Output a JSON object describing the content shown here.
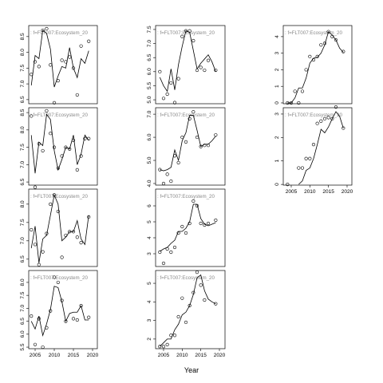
{
  "xlabel": "Year",
  "chart_data": [
    {
      "type": "line",
      "title": ": f=FLT007:Ecosystem_20",
      "x": [
        2004,
        2005,
        2006,
        2007,
        2008,
        2009,
        2010,
        2011,
        2012,
        2013,
        2014,
        2015,
        2016,
        2017,
        2018,
        2019
      ],
      "xlim": [
        2003.33,
        2021.25
      ],
      "ylim": [
        6.37,
        8.85
      ],
      "yticks": [
        6.5,
        {
          "value": 7,
          "label": "7.0"
        },
        7.5,
        {
          "value": 8,
          "label": "8.0"
        },
        8.5
      ],
      "series": [
        {
          "style": "points",
          "color": "#000000",
          "values": [
            7.3,
            7.7,
            7.55,
            8.7,
            8.75,
            7.6,
            6.4,
            7.1,
            7.75,
            7.7,
            7.85,
            7.5,
            6.65,
            8.2,
            null,
            8.35
          ]
        },
        {
          "style": "line",
          "color": "#000000",
          "values": [
            6.95,
            7.9,
            7.8,
            8.7,
            8.6,
            8.1,
            6.9,
            7.25,
            7.55,
            7.5,
            8.15,
            7.5,
            7.2,
            7.8,
            7.65,
            8.05
          ]
        }
      ]
    },
    {
      "type": "line",
      "title": ": f=FLT007:Ecosystem_20",
      "x": [
        2004,
        2005,
        2006,
        2007,
        2008,
        2009,
        2010,
        2011,
        2012,
        2013,
        2014,
        2015,
        2016,
        2017,
        2018,
        2019
      ],
      "xlim": [
        2003.33,
        2021.25
      ],
      "ylim": [
        6.41,
        8.64
      ],
      "yticks": [
        6.5,
        {
          "value": 7,
          "label": "7.0"
        },
        7.5,
        {
          "value": 8,
          "label": "8.0"
        },
        8.5
      ],
      "series": [
        {
          "style": "points",
          "color": "#000000",
          "values": [
            8.4,
            6.35,
            7.6,
            7.4,
            8.55,
            7.9,
            7.5,
            6.9,
            7.25,
            7.5,
            7.45,
            7.7,
            6.85,
            7.25,
            7.75,
            7.75
          ]
        },
        {
          "style": "line",
          "color": "#000000",
          "values": [
            7.85,
            6.75,
            7.65,
            7.55,
            8.45,
            8.3,
            7.4,
            6.85,
            7.15,
            7.5,
            7.45,
            7.85,
            7.0,
            7.3,
            7.85,
            7.7
          ]
        }
      ]
    },
    {
      "type": "line",
      "title": ": f=FLT007:Ecosystem_20",
      "x": [
        2004,
        2005,
        2006,
        2007,
        2008,
        2009,
        2010,
        2011,
        2012,
        2013,
        2014,
        2015,
        2016,
        2017,
        2018,
        2019
      ],
      "xlim": [
        2003.33,
        2021.25
      ],
      "ylim": [
        6.3,
        8.41
      ],
      "yticks": [
        6.5,
        {
          "value": 7,
          "label": "7.0"
        },
        7.5,
        {
          "value": 8,
          "label": "8.0"
        }
      ],
      "series": [
        {
          "style": "points",
          "color": "#000000",
          "values": [
            7.3,
            6.9,
            6.35,
            6.7,
            7.2,
            8.0,
            8.25,
            7.8,
            6.55,
            7.15,
            7.25,
            7.25,
            7.1,
            6.95,
            null,
            7.65
          ]
        },
        {
          "style": "line",
          "color": "#000000",
          "values": [
            6.8,
            7.4,
            6.4,
            7.05,
            7.15,
            7.7,
            8.25,
            8.0,
            7.0,
            7.1,
            7.25,
            7.25,
            7.55,
            7.05,
            6.9,
            7.7
          ]
        }
      ]
    },
    {
      "type": "line",
      "title": ": f=FLT007:Ecosystem_20",
      "x": [
        2004,
        2005,
        2006,
        2007,
        2008,
        2009,
        2010,
        2011,
        2012,
        2013,
        2014,
        2015,
        2016,
        2017,
        2018,
        2019
      ],
      "xlim": [
        2003.33,
        2021.25
      ],
      "ylim": [
        5.44,
        8.46
      ],
      "xticks": [
        2005,
        2010,
        2015,
        2020
      ],
      "yticks": [
        5.5,
        {
          "value": 6,
          "label": "6.0"
        },
        6.5,
        {
          "value": 7,
          "label": "7.0"
        },
        7.5,
        {
          "value": 8,
          "label": "8.0"
        }
      ],
      "series": [
        {
          "style": "points",
          "color": "#000000",
          "values": [
            6.7,
            5.6,
            6.6,
            5.5,
            6.25,
            6.9,
            8.2,
            8.0,
            7.3,
            6.5,
            null,
            6.6,
            6.55,
            7.1,
            null,
            6.65
          ]
        },
        {
          "style": "line",
          "color": "#000000",
          "values": [
            6.5,
            6.2,
            6.7,
            5.95,
            6.4,
            6.95,
            7.85,
            7.8,
            7.25,
            6.5,
            6.8,
            6.85,
            6.85,
            7.1,
            6.55,
            6.55
          ]
        }
      ]
    },
    {
      "type": "line",
      "title": ": f=FLT007:Ecosystem_20",
      "x": [
        2004,
        2005,
        2006,
        2007,
        2008,
        2009,
        2010,
        2011,
        2012,
        2013,
        2014,
        2015,
        2016,
        2017,
        2018,
        2019
      ],
      "xlim": [
        2002.86,
        2021.5
      ],
      "ylim": [
        4.86,
        7.64
      ],
      "yticks": [
        {
          "value": 5,
          "label": "5.0"
        },
        5.5,
        {
          "value": 6,
          "label": "6.0"
        },
        6.5,
        {
          "value": 7,
          "label": "7.0"
        },
        7.5
      ],
      "series": [
        {
          "style": "points",
          "color": "#000000",
          "values": [
            6.0,
            5.05,
            5.2,
            5.6,
            4.9,
            5.75,
            7.25,
            7.45,
            7.45,
            7.1,
            6.05,
            6.15,
            6.05,
            6.4,
            null,
            6.05
          ]
        },
        {
          "style": "line",
          "color": "#000000",
          "values": [
            5.8,
            5.5,
            5.3,
            6.1,
            5.35,
            6.25,
            6.9,
            7.45,
            7.4,
            6.75,
            6.1,
            6.3,
            6.45,
            6.6,
            6.35,
            6.0
          ]
        }
      ]
    },
    {
      "type": "line",
      "title": ": f=FLT007:Ecosystem_20",
      "x": [
        2004,
        2005,
        2006,
        2007,
        2008,
        2009,
        2010,
        2011,
        2012,
        2013,
        2014,
        2015,
        2016,
        2017,
        2018,
        2019
      ],
      "xlim": [
        2002.86,
        2021.5
      ],
      "ylim": [
        3.93,
        7.28
      ],
      "yticks": [
        {
          "value": 4,
          "label": "4.0"
        },
        {
          "value": 5,
          "label": "5.0"
        },
        {
          "value": 6,
          "label": "6.0"
        },
        {
          "value": 7,
          "label": "7.0"
        }
      ],
      "series": [
        {
          "style": "points",
          "color": "#000000",
          "values": [
            4.6,
            4.0,
            4.4,
            4.1,
            5.2,
            4.9,
            6.0,
            5.8,
            6.8,
            7.1,
            6.0,
            5.6,
            5.65,
            5.65,
            null,
            6.1
          ]
        },
        {
          "style": "line",
          "color": "#000000",
          "values": [
            4.6,
            4.55,
            4.6,
            4.7,
            5.45,
            5.0,
            5.85,
            6.2,
            6.95,
            6.95,
            6.3,
            5.6,
            5.7,
            5.7,
            5.85,
            6.05
          ]
        }
      ]
    },
    {
      "type": "line",
      "title": ": f=FLT007:Ecosystem_20",
      "x": [
        2004,
        2005,
        2006,
        2007,
        2008,
        2009,
        2010,
        2011,
        2012,
        2013,
        2014,
        2015,
        2016,
        2017,
        2018,
        2019
      ],
      "xlim": [
        2002.86,
        2021.5
      ],
      "ylim": [
        2.2,
        7.05
      ],
      "yticks": [
        3,
        4,
        5,
        6
      ],
      "series": [
        {
          "style": "points",
          "color": "#000000",
          "values": [
            3.1,
            2.4,
            3.3,
            3.1,
            3.4,
            4.3,
            4.7,
            4.3,
            4.9,
            6.3,
            6.0,
            4.9,
            4.8,
            4.9,
            null,
            5.1
          ]
        },
        {
          "style": "line",
          "color": "#000000",
          "values": [
            3.15,
            3.3,
            3.4,
            3.65,
            3.85,
            4.4,
            4.4,
            4.6,
            5.0,
            6.1,
            6.1,
            5.2,
            4.85,
            4.75,
            4.85,
            4.95
          ]
        }
      ]
    },
    {
      "type": "line",
      "title": ": f=FLT007:Ecosystem_20",
      "x": [
        2004,
        2005,
        2006,
        2007,
        2008,
        2009,
        2010,
        2011,
        2012,
        2013,
        2014,
        2015,
        2016,
        2017,
        2018,
        2019
      ],
      "xlim": [
        2002.86,
        2021.5
      ],
      "ylim": [
        1.48,
        5.69
      ],
      "xticks": [
        2005,
        2010,
        2015,
        2020
      ],
      "yticks": [
        2,
        3,
        4,
        5
      ],
      "series": [
        {
          "style": "points",
          "color": "#000000",
          "values": [
            1.6,
            1.6,
            1.7,
            2.2,
            2.2,
            3.2,
            4.2,
            2.9,
            3.8,
            4.5,
            5.6,
            4.9,
            4.1,
            null,
            null,
            3.9
          ]
        },
        {
          "style": "line",
          "color": "#000000",
          "values": [
            1.6,
            1.8,
            2.0,
            2.0,
            2.5,
            2.8,
            3.3,
            3.45,
            3.8,
            4.4,
            5.3,
            5.45,
            4.6,
            4.15,
            4.0,
            3.9
          ]
        }
      ]
    },
    {
      "type": "line",
      "title": ": f=FLT007:Ecosystem_20",
      "x": [
        2004,
        2005,
        2006,
        2007,
        2008,
        2009,
        2010,
        2011,
        2012,
        2013,
        2014,
        2015,
        2016,
        2017,
        2018,
        2019
      ],
      "xlim": [
        2002.86,
        2021.29
      ],
      "ylim": [
        -0.05,
        4.67
      ],
      "yticks": [
        0,
        1,
        2,
        3,
        4
      ],
      "series": [
        {
          "style": "points",
          "color": "#000000",
          "values": [
            0,
            0,
            0.7,
            0,
            0.7,
            2.0,
            2.8,
            2.6,
            2.8,
            3.5,
            3.6,
            4.3,
            4.0,
            3.8,
            null,
            3.1
          ]
        },
        {
          "style": "line",
          "color": "#000000",
          "values": [
            0,
            0,
            0.3,
            0.9,
            0.9,
            1.5,
            2.4,
            2.7,
            2.75,
            3.0,
            3.5,
            4.3,
            4.1,
            3.8,
            3.3,
            3.05
          ]
        }
      ]
    },
    {
      "type": "line",
      "title": ": f=FLT007:Ecosystem_20",
      "x": [
        2004,
        2005,
        2006,
        2007,
        2008,
        2009,
        2010,
        2011,
        2012,
        2013,
        2014,
        2015,
        2016,
        2017,
        2018,
        2019
      ],
      "xlim": [
        2002.86,
        2021.29
      ],
      "ylim": [
        -0.03,
        3.27
      ],
      "xticks": [
        2005,
        2010,
        2015,
        2020
      ],
      "yticks": [
        0,
        1,
        2,
        3
      ],
      "series": [
        {
          "style": "points",
          "color": "#000000",
          "values": [
            0,
            null,
            null,
            0.7,
            0.7,
            1.1,
            1.1,
            1.7,
            2.6,
            2.7,
            2.8,
            2.85,
            2.8,
            3.3,
            null,
            2.4
          ]
        },
        {
          "style": "line",
          "color": "#000000",
          "values": [
            null,
            null,
            null,
            0,
            0.15,
            0.6,
            0.7,
            1.1,
            1.7,
            2.35,
            2.2,
            2.45,
            2.8,
            3.1,
            2.9,
            2.4
          ]
        }
      ]
    }
  ]
}
